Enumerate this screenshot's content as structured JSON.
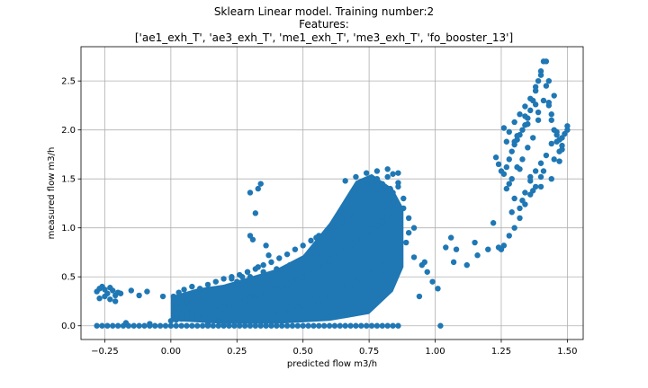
{
  "chart_data": {
    "type": "scatter",
    "title_lines": [
      "Sklearn Linear model. Training number:2",
      "Features:",
      "['ae1_exh_T', 'ae3_exh_T', 'me1_exh_T', 'me3_exh_T', 'fo_booster_13']"
    ],
    "xlabel": "predicted flow m3/h",
    "ylabel": "measured flow m3/h",
    "xlim": [
      -0.34,
      1.56
    ],
    "ylim": [
      -0.14,
      2.85
    ],
    "xticks": [
      -0.25,
      0.0,
      0.25,
      0.5,
      0.75,
      1.0,
      1.25,
      1.5
    ],
    "xtick_labels": [
      "−0.25",
      "0.00",
      "0.25",
      "0.50",
      "0.75",
      "1.00",
      "1.25",
      "1.50"
    ],
    "yticks": [
      0.0,
      0.5,
      1.0,
      1.5,
      2.0,
      2.5
    ],
    "ytick_labels": [
      "0.0",
      "0.5",
      "1.0",
      "1.5",
      "2.0",
      "2.5"
    ],
    "grid": true,
    "marker_color": "#1f77b4",
    "series": [
      {
        "x": [
          -0.28,
          -0.26,
          -0.24,
          -0.22,
          -0.2,
          -0.18,
          -0.16,
          -0.14,
          -0.12,
          -0.1,
          -0.08,
          -0.06,
          -0.04,
          -0.02,
          0.0,
          0.02,
          0.04,
          0.06,
          0.08,
          0.1,
          0.12,
          0.14,
          0.16,
          0.18,
          0.2,
          0.22,
          0.24,
          0.26,
          0.28,
          0.3,
          0.32,
          0.34,
          0.36,
          0.38,
          0.4,
          0.42,
          0.44,
          0.46,
          0.48,
          0.5,
          0.52,
          0.54,
          0.56,
          0.58,
          0.6,
          0.62,
          0.64,
          0.66,
          0.68,
          0.7,
          0.72,
          0.74,
          0.76,
          0.78,
          0.8,
          0.82,
          0.84,
          0.86,
          1.02,
          -0.28,
          -0.27,
          -0.26,
          -0.25,
          -0.24,
          -0.23,
          -0.22,
          -0.21,
          -0.2,
          -0.27,
          -0.25,
          -0.23,
          -0.21,
          -0.19,
          -0.15,
          -0.12,
          -0.17,
          -0.08,
          0.0,
          0.02,
          0.04,
          0.06,
          0.08,
          0.1,
          0.12,
          0.14,
          0.16,
          0.18,
          0.2,
          0.22,
          0.24,
          0.26,
          0.28,
          0.3,
          0.32,
          0.34,
          0.36,
          0.38,
          0.4,
          0.42,
          0.44,
          0.46,
          0.48,
          0.5,
          0.52,
          0.54,
          0.56,
          0.58,
          0.6,
          0.62,
          0.64,
          0.66,
          0.68,
          0.7,
          0.72,
          0.74,
          0.76,
          0.78,
          0.8,
          0.82,
          0.84,
          0.01,
          0.03,
          0.05,
          0.08,
          0.11,
          0.14,
          0.17,
          0.2,
          0.23,
          0.26,
          0.29,
          0.32,
          0.35,
          0.38,
          0.41,
          0.44,
          0.47,
          0.5,
          0.53,
          0.56,
          0.59,
          0.62,
          0.65,
          0.68,
          0.71,
          0.74,
          0.77,
          0.8,
          0.83,
          0.2,
          0.24,
          0.28,
          0.32,
          0.36,
          0.4,
          0.44,
          0.48,
          0.52,
          0.56,
          0.6,
          0.64,
          0.68,
          0.72,
          0.76,
          0.8,
          0.84,
          0.25,
          0.3,
          0.35,
          0.4,
          0.45,
          0.5,
          0.55,
          0.6,
          0.65,
          0.7,
          0.75,
          0.8,
          0.84,
          0.35,
          0.4,
          0.45,
          0.5,
          0.55,
          0.6,
          0.65,
          0.7,
          0.75,
          0.8,
          0.84,
          0.55,
          0.6,
          0.65,
          0.7,
          0.75,
          0.8,
          0.84,
          0.62,
          0.68,
          0.72,
          0.76,
          0.8,
          0.84,
          0.66,
          0.7,
          0.74,
          0.78,
          0.82,
          0.86,
          0.7,
          0.74,
          0.78,
          0.82,
          0.86,
          0.74,
          0.78,
          0.82,
          0.86,
          0.8,
          0.84,
          0.88,
          0.33,
          0.34,
          0.3,
          0.32,
          0.36,
          0.31,
          0.37,
          0.3,
          0.33,
          0.29,
          0.27,
          0.23,
          0.25,
          0.21,
          0.18,
          0.14,
          0.1,
          0.08,
          0.06,
          -0.03,
          -0.09,
          0.04,
          0.02,
          0.88,
          0.9,
          0.92,
          0.9,
          0.89,
          0.92,
          0.95,
          0.97,
          0.99,
          1.01,
          0.94,
          0.96,
          1.06,
          1.08,
          1.12,
          1.16,
          1.2,
          1.04,
          1.07,
          1.15,
          1.23,
          1.24,
          1.25,
          1.26,
          1.27,
          1.28,
          1.29,
          1.3,
          1.31,
          1.32,
          1.33,
          1.34,
          1.35,
          1.36,
          1.37,
          1.38,
          1.39,
          1.4,
          1.41,
          1.42,
          1.43,
          1.44,
          1.45,
          1.46,
          1.47,
          1.48,
          1.49,
          1.5,
          1.26,
          1.28,
          1.3,
          1.32,
          1.34,
          1.36,
          1.38,
          1.4,
          1.42,
          1.44,
          1.46,
          1.48,
          1.5,
          1.27,
          1.29,
          1.31,
          1.33,
          1.35,
          1.37,
          1.39,
          1.41,
          1.43,
          1.45,
          1.47,
          1.28,
          1.3,
          1.32,
          1.34,
          1.36,
          1.38,
          1.4,
          1.42,
          1.44,
          1.46,
          1.48,
          1.32,
          1.36,
          1.4,
          1.44,
          1.27,
          1.31,
          1.35,
          1.39,
          1.43,
          1.22,
          1.24,
          1.26,
          1.28,
          1.3,
          1.32,
          1.34,
          1.36,
          1.38,
          1.4,
          1.25,
          1.29,
          1.33,
          1.37,
          1.41,
          1.45,
          1.47,
          1.3,
          1.34,
          1.38
        ],
        "y": [
          0,
          0,
          0,
          0,
          0,
          0,
          0,
          0,
          0,
          0,
          0,
          0,
          0,
          0,
          0,
          0,
          0,
          0,
          0,
          0,
          0,
          0,
          0,
          0,
          0,
          0,
          0,
          0,
          0,
          0,
          0,
          0,
          0,
          0,
          0,
          0,
          0,
          0,
          0,
          0,
          0,
          0,
          0,
          0,
          0,
          0,
          0,
          0,
          0,
          0,
          0,
          0,
          0,
          0,
          0,
          0,
          0,
          0,
          0,
          0.35,
          0.38,
          0.4,
          0.37,
          0.33,
          0.39,
          0.36,
          0.31,
          0.34,
          0.28,
          0.3,
          0.27,
          0.25,
          0.33,
          0.36,
          0.31,
          0.03,
          0.02,
          0.05,
          0.06,
          0.07,
          0.08,
          0.1,
          0.1,
          0.12,
          0.13,
          0.15,
          0.16,
          0.18,
          0.2,
          0.22,
          0.24,
          0.26,
          0.28,
          0.3,
          0.32,
          0.34,
          0.36,
          0.38,
          0.4,
          0.42,
          0.45,
          0.48,
          0.5,
          0.53,
          0.56,
          0.6,
          0.63,
          0.67,
          0.7,
          0.74,
          0.78,
          0.82,
          0.86,
          0.9,
          0.94,
          0.98,
          1.02,
          1.06,
          1.1,
          1.12,
          0.3,
          0.34,
          0.37,
          0.4,
          0.38,
          0.42,
          0.45,
          0.48,
          0.5,
          0.52,
          0.55,
          0.58,
          0.62,
          0.65,
          0.69,
          0.73,
          0.78,
          0.82,
          0.87,
          0.92,
          0.97,
          1.02,
          1.08,
          1.14,
          1.2,
          1.26,
          1.32,
          1.38,
          1.4,
          0.02,
          0.04,
          0.06,
          0.08,
          0.1,
          0.12,
          0.15,
          0.18,
          0.21,
          0.25,
          0.29,
          0.33,
          0.38,
          0.44,
          0.5,
          0.56,
          0.62,
          0.45,
          0.5,
          0.55,
          0.58,
          0.62,
          0.68,
          0.74,
          0.8,
          0.88,
          0.96,
          1.04,
          1.12,
          1.2,
          0.1,
          0.14,
          0.18,
          0.22,
          0.28,
          0.34,
          0.42,
          0.5,
          0.58,
          0.66,
          0.74,
          0.9,
          0.95,
          1.0,
          1.1,
          1.2,
          1.3,
          1.36,
          1.05,
          1.15,
          1.25,
          1.35,
          1.45,
          1.55,
          1.48,
          1.52,
          1.56,
          1.58,
          1.6,
          1.56,
          1.4,
          1.44,
          1.5,
          1.52,
          1.46,
          1.3,
          1.34,
          1.38,
          1.42,
          1.2,
          1.25,
          1.3,
          1.4,
          1.45,
          1.36,
          1.15,
          0.82,
          0.88,
          0.72,
          0.92,
          0.6,
          0.55,
          0.5,
          0.48,
          0.4,
          0.38,
          0.05,
          0.02,
          0.08,
          0.15,
          0.25,
          0.3,
          0.35,
          0.12,
          0.2,
          1.2,
          1.1,
          1.0,
          0.95,
          0.85,
          0.7,
          0.62,
          0.55,
          0.45,
          0.38,
          0.3,
          0.65,
          0.9,
          0.78,
          0.62,
          0.72,
          0.78,
          0.8,
          0.65,
          0.85,
          1.72,
          1.65,
          1.58,
          1.55,
          1.62,
          1.7,
          1.78,
          1.85,
          1.9,
          1.95,
          2.0,
          2.05,
          2.12,
          2.2,
          2.3,
          2.4,
          2.5,
          2.6,
          2.7,
          2.45,
          2.25,
          2.1,
          2.0,
          1.95,
          1.9,
          1.92,
          1.96,
          2.04,
          2.02,
          1.98,
          2.08,
          2.16,
          2.24,
          2.32,
          2.44,
          2.56,
          2.7,
          2.16,
          1.88,
          1.84,
          2.0,
          1.4,
          1.5,
          1.62,
          1.7,
          1.82,
          1.92,
          2.1,
          2.3,
          2.5,
          2.35,
          1.78,
          1.45,
          1.3,
          1.2,
          1.36,
          1.48,
          1.58,
          1.66,
          1.74,
          1.86,
          1.98,
          1.8,
          1.6,
          1.52,
          1.42,
          1.5,
          1.88,
          1.94,
          2.06,
          2.18,
          2.28,
          1.05,
          0.8,
          0.82,
          0.92,
          1.0,
          1.1,
          1.24,
          1.34,
          1.42,
          1.52,
          0.78,
          1.16,
          1.28,
          1.38,
          1.58,
          1.7,
          1.68,
          1.88,
          2.14,
          2.26
        ]
      }
    ]
  }
}
